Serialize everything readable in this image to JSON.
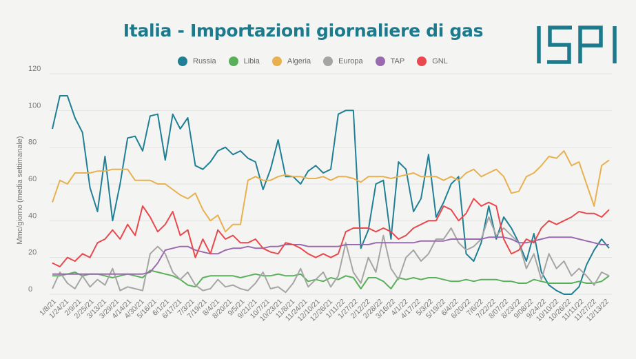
{
  "chart_data": {
    "type": "line",
    "title": "Italia - Importazioni giornaliere di gas",
    "ylabel": "Mmc/giorno (media settimanale)",
    "xlabel": "",
    "ylim": [
      0,
      120
    ],
    "yticks": [
      0,
      20,
      40,
      60,
      80,
      100,
      120
    ],
    "grid": true,
    "legend_position": "top",
    "x_tick_labels": [
      "1/8/21",
      "1/24/21",
      "2/9/21",
      "2/25/21",
      "3/13/21",
      "3/29/21",
      "4/14/21",
      "4/30/21",
      "5/16/21",
      "6/1/21",
      "6/17/21",
      "7/3/21",
      "7/19/21",
      "8/4/21",
      "8/20/21",
      "9/5/21",
      "9/21/21",
      "10/7/21",
      "10/23/21",
      "11/8/21",
      "11/24/21",
      "12/10/21",
      "12/26/21",
      "1/11/22",
      "1/27/22",
      "2/12/22",
      "2/28/22",
      "3/16/22",
      "4/1/22",
      "4/17/22",
      "5/3/22",
      "5/19/22",
      "6/4/22",
      "6/20/22",
      "7/6/22",
      "7/22/22",
      "8/07/22",
      "8/23/22",
      "9/08/22",
      "9/24/22",
      "10/10/22",
      "10/26/22",
      "11/11/22",
      "11/27/22",
      "12/13/22"
    ],
    "series": [
      {
        "name": "Russia",
        "color": "#1f7f95",
        "values": [
          90,
          108,
          108,
          96,
          88,
          58,
          45,
          75,
          40,
          60,
          85,
          86,
          78,
          97,
          98,
          73,
          98,
          90,
          96,
          70,
          68,
          72,
          78,
          80,
          76,
          78,
          74,
          72,
          57,
          68,
          84,
          64,
          64,
          60,
          67,
          70,
          66,
          68,
          98,
          100,
          100,
          25,
          35,
          60,
          62,
          30,
          72,
          68,
          45,
          52,
          76,
          42,
          50,
          60,
          64,
          22,
          18,
          28,
          48,
          30,
          42,
          36,
          28,
          18,
          33,
          12,
          5,
          2,
          0,
          0,
          4,
          16,
          24,
          30,
          25
        ]
      },
      {
        "name": "Libia",
        "color": "#5aaf5a",
        "values": [
          10,
          10,
          11,
          12,
          10,
          11,
          11,
          10,
          9,
          10,
          11,
          10,
          9,
          13,
          12,
          11,
          10,
          8,
          5,
          4,
          9,
          10,
          10,
          10,
          10,
          9,
          10,
          11,
          10,
          10,
          11,
          10,
          10,
          11,
          7,
          8,
          7,
          9,
          8,
          10,
          9,
          3,
          9,
          9,
          7,
          3,
          9,
          8,
          9,
          8,
          9,
          9,
          8,
          7,
          7,
          8,
          7,
          8,
          8,
          8,
          7,
          7,
          6,
          6,
          8,
          7,
          6,
          6,
          6,
          6,
          7,
          6,
          6,
          7,
          10
        ]
      },
      {
        "name": "Algeria",
        "color": "#e8b04f",
        "values": [
          50,
          62,
          60,
          66,
          66,
          66,
          67,
          67,
          68,
          68,
          68,
          62,
          62,
          62,
          60,
          60,
          57,
          54,
          52,
          55,
          46,
          40,
          43,
          34,
          38,
          38,
          62,
          64,
          62,
          62,
          64,
          65,
          64,
          64,
          63,
          63,
          64,
          62,
          64,
          64,
          63,
          61,
          64,
          64,
          64,
          63,
          64,
          65,
          66,
          64,
          64,
          64,
          62,
          64,
          62,
          66,
          68,
          64,
          66,
          68,
          64,
          55,
          56,
          64,
          66,
          70,
          75,
          74,
          78,
          70,
          72,
          60,
          48,
          70,
          73
        ]
      },
      {
        "name": "Europa",
        "color": "#a5a5a5",
        "values": [
          3,
          12,
          6,
          3,
          10,
          4,
          8,
          5,
          14,
          2,
          4,
          3,
          2,
          22,
          26,
          22,
          12,
          8,
          12,
          5,
          2,
          3,
          8,
          4,
          5,
          3,
          2,
          6,
          12,
          3,
          4,
          1,
          6,
          14,
          4,
          8,
          12,
          4,
          10,
          28,
          12,
          6,
          20,
          12,
          32,
          14,
          8,
          20,
          24,
          18,
          22,
          30,
          30,
          36,
          28,
          24,
          26,
          30,
          42,
          32,
          36,
          32,
          28,
          14,
          22,
          8,
          22,
          14,
          18,
          10,
          14,
          10,
          5,
          12,
          10
        ]
      },
      {
        "name": "TAP",
        "color": "#9a6aae",
        "values": [
          11,
          11,
          11,
          11,
          11,
          11,
          11,
          11,
          11,
          11,
          11,
          11,
          11,
          12,
          17,
          24,
          25,
          26,
          26,
          24,
          23,
          22,
          22,
          24,
          25,
          25,
          26,
          25,
          25,
          26,
          26,
          27,
          27,
          27,
          26,
          26,
          26,
          26,
          26,
          27,
          27,
          27,
          27,
          28,
          28,
          28,
          28,
          28,
          28,
          29,
          29,
          29,
          29,
          30,
          30,
          30,
          30,
          30,
          31,
          31,
          31,
          30,
          28,
          28,
          29,
          30,
          31,
          31,
          31,
          31,
          30,
          29,
          28,
          27,
          27
        ]
      },
      {
        "name": "GNL",
        "color": "#e8484e",
        "values": [
          17,
          15,
          20,
          18,
          22,
          20,
          28,
          30,
          35,
          30,
          38,
          32,
          48,
          42,
          34,
          38,
          45,
          32,
          35,
          20,
          30,
          22,
          35,
          30,
          32,
          28,
          28,
          30,
          25,
          23,
          22,
          28,
          27,
          25,
          22,
          20,
          22,
          20,
          22,
          34,
          36,
          36,
          36,
          34,
          36,
          34,
          30,
          32,
          36,
          38,
          40,
          40,
          48,
          46,
          40,
          44,
          52,
          48,
          50,
          48,
          30,
          22,
          24,
          30,
          28,
          36,
          40,
          38,
          40,
          42,
          45,
          44,
          44,
          42,
          46
        ]
      }
    ]
  }
}
